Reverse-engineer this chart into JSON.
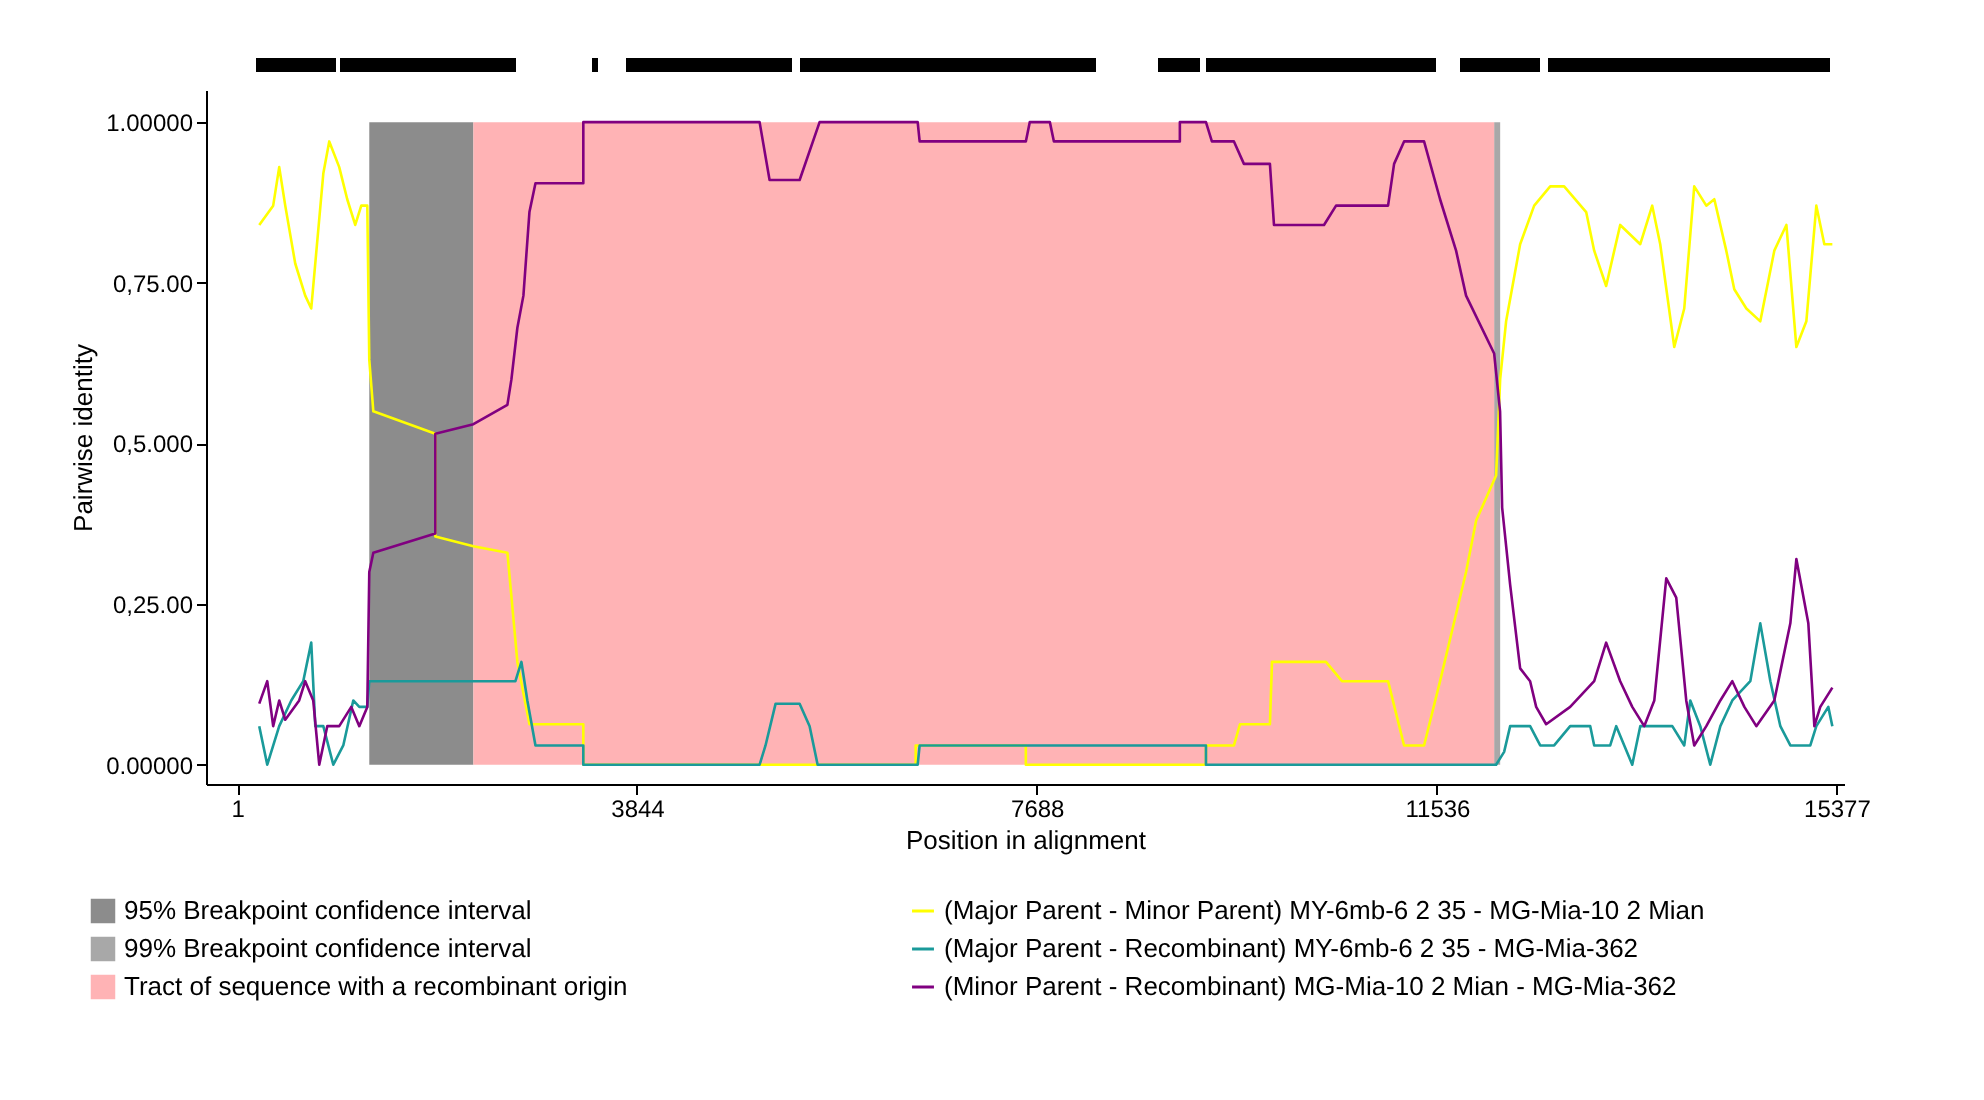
{
  "chart_data": {
    "type": "line",
    "xlabel": "Position in alignment",
    "ylabel": "Pairwise identity",
    "xlim": [
      -300,
      15450
    ],
    "xticks": [
      1,
      3844,
      7688,
      11536,
      15377
    ],
    "ylim": [
      -0.03,
      1.05
    ],
    "yticks": [
      {
        "value": 0,
        "label": "0.00000"
      },
      {
        "value": 0.25,
        "label": "0,25.00"
      },
      {
        "value": 0.5,
        "label": "0,5.000"
      },
      {
        "value": 0.75,
        "label": "0,75.00"
      },
      {
        "value": 1,
        "label": "1.00000"
      }
    ],
    "grid": false,
    "legend": "bottom",
    "marker": "none",
    "line_style": "solid",
    "bands": [
      {
        "axis": "x",
        "from": 1270,
        "to": 2271,
        "label": "95% Breakpoint confidence interval",
        "color": "#8c8c8c"
      },
      {
        "axis": "x",
        "from": 12086,
        "to": 12144,
        "label": "99% Breakpoint confidence interval",
        "color": "#a8a8a8"
      },
      {
        "axis": "x",
        "from": 2271,
        "to": 12086,
        "label": "Tract of sequence with a recombinant origin",
        "color": "#ffb3b5"
      }
    ],
    "series": [
      {
        "name": "(Major Parent - Minor Parent)  MY-6mb-6 2 35 - MG-Mia-10 2 Mian",
        "color": "#ffff00",
        "x": [
          212,
          346,
          404,
          462,
          558,
          654,
          712,
          828,
          885,
          981,
          1058,
          1135,
          1193,
          1251,
          1270,
          1309,
          1905,
          1905,
          2271,
          2598,
          2694,
          2810,
          3328,
          3328,
          6524,
          6524,
          7583,
          7583,
          9315,
          9315,
          9584,
          9642,
          9930,
          9950,
          10469,
          10623,
          11066,
          11143,
          11220,
          11412,
          11566,
          11816,
          11913,
          12105,
          12144,
          12201,
          12336,
          12471,
          12625,
          12759,
          12971,
          13048,
          13163,
          13298,
          13491,
          13606,
          13683,
          13818,
          13914,
          14010,
          14126,
          14203,
          14318,
          14395,
          14511,
          14645,
          14780,
          14896,
          14992,
          15088,
          15184,
          15261,
          15338
        ],
        "values": [
          0.84,
          0.87,
          0.93,
          0.87,
          0.78,
          0.73,
          0.71,
          0.92,
          0.97,
          0.93,
          0.88,
          0.84,
          0.87,
          0.87,
          0.63,
          0.55,
          0.515,
          0.355,
          0.34,
          0.33,
          0.16,
          0.063,
          0.063,
          0,
          0,
          0.03,
          0.03,
          0,
          0,
          0.03,
          0.03,
          0.063,
          0.063,
          0.16,
          0.16,
          0.13,
          0.13,
          0.08,
          0.03,
          0.03,
          0.13,
          0.3,
          0.38,
          0.45,
          0.6,
          0.69,
          0.81,
          0.87,
          0.9,
          0.9,
          0.86,
          0.8,
          0.745,
          0.84,
          0.81,
          0.87,
          0.81,
          0.65,
          0.71,
          0.9,
          0.87,
          0.88,
          0.8,
          0.74,
          0.71,
          0.69,
          0.8,
          0.84,
          0.65,
          0.69,
          0.87,
          0.81,
          0.81
        ]
      },
      {
        "name": "(Major Parent - Recombinant) MY-6mb-6 2 35 - MG-Mia-362",
        "color": "#1a9a9a",
        "x": [
          212,
          289,
          404,
          520,
          635,
          712,
          751,
          828,
          924,
          1020,
          1116,
          1174,
          1251,
          1270,
          2675,
          2733,
          2790,
          2868,
          3328,
          3328,
          5023,
          5080,
          5177,
          5408,
          5504,
          5581,
          6543,
          6562,
          8872,
          9315,
          9315,
          12105,
          12182,
          12240,
          12432,
          12529,
          12663,
          12817,
          13010,
          13048,
          13202,
          13260,
          13414,
          13491,
          13799,
          13914,
          13972,
          14068,
          14164,
          14261,
          14376,
          14549,
          14645,
          14742,
          14838,
          14934,
          15126,
          15184,
          15299,
          15338
        ],
        "values": [
          0.06,
          0,
          0.06,
          0.1,
          0.13,
          0.19,
          0.06,
          0.06,
          0,
          0.03,
          0.1,
          0.09,
          0.09,
          0.13,
          0.13,
          0.16,
          0.1,
          0.03,
          0.03,
          0,
          0,
          0.03,
          0.095,
          0.095,
          0.06,
          0,
          0,
          0.03,
          0.03,
          0.03,
          0,
          0,
          0.02,
          0.06,
          0.06,
          0.03,
          0.03,
          0.06,
          0.06,
          0.03,
          0.03,
          0.06,
          0,
          0.06,
          0.06,
          0.03,
          0.1,
          0.06,
          0,
          0.06,
          0.1,
          0.13,
          0.22,
          0.13,
          0.06,
          0.03,
          0.03,
          0.06,
          0.09,
          0.06
        ]
      },
      {
        "name": "(Minor Parent - Recombinant) MG-Mia-10 2 Mian - MG-Mia-362",
        "color": "#800080",
        "x": [
          212,
          289,
          346,
          404,
          462,
          596,
          654,
          731,
          789,
          866,
          981,
          1097,
          1174,
          1251,
          1270,
          1309,
          1905,
          1905,
          2271,
          2598,
          2637,
          2694,
          2752,
          2810,
          2868,
          3328,
          3328,
          5023,
          5119,
          5408,
          5600,
          6543,
          6562,
          7583,
          7621,
          7814,
          7853,
          8872,
          9064,
          9064,
          9315,
          9372,
          9584,
          9680,
          9930,
          9969,
          10450,
          10566,
          11066,
          11124,
          11220,
          11412,
          11566,
          11720,
          11816,
          12086,
          12143,
          12163,
          12240,
          12336,
          12432,
          12490,
          12586,
          12817,
          13048,
          13163,
          13298,
          13414,
          13529,
          13626,
          13741,
          13837,
          13933,
          14010,
          14126,
          14261,
          14376,
          14492,
          14607,
          14780,
          14934,
          14992,
          15107,
          15165,
          15222,
          15338
        ],
        "values": [
          0.095,
          0.13,
          0.06,
          0.1,
          0.07,
          0.1,
          0.13,
          0.1,
          0,
          0.06,
          0.06,
          0.09,
          0.06,
          0.09,
          0.3,
          0.33,
          0.36,
          0.515,
          0.53,
          0.56,
          0.6,
          0.68,
          0.73,
          0.86,
          0.905,
          0.905,
          1,
          1,
          0.91,
          0.91,
          1,
          1,
          0.97,
          0.97,
          1,
          1,
          0.97,
          0.97,
          0.97,
          1,
          1,
          0.97,
          0.97,
          0.935,
          0.935,
          0.84,
          0.84,
          0.87,
          0.87,
          0.935,
          0.97,
          0.97,
          0.88,
          0.8,
          0.73,
          0.64,
          0.55,
          0.4,
          0.28,
          0.15,
          0.13,
          0.09,
          0.063,
          0.09,
          0.13,
          0.19,
          0.13,
          0.09,
          0.06,
          0.1,
          0.29,
          0.26,
          0.1,
          0.03,
          0.06,
          0.1,
          0.13,
          0.09,
          0.06,
          0.1,
          0.22,
          0.32,
          0.22,
          0.06,
          0.09,
          0.12
        ]
      }
    ]
  }
}
